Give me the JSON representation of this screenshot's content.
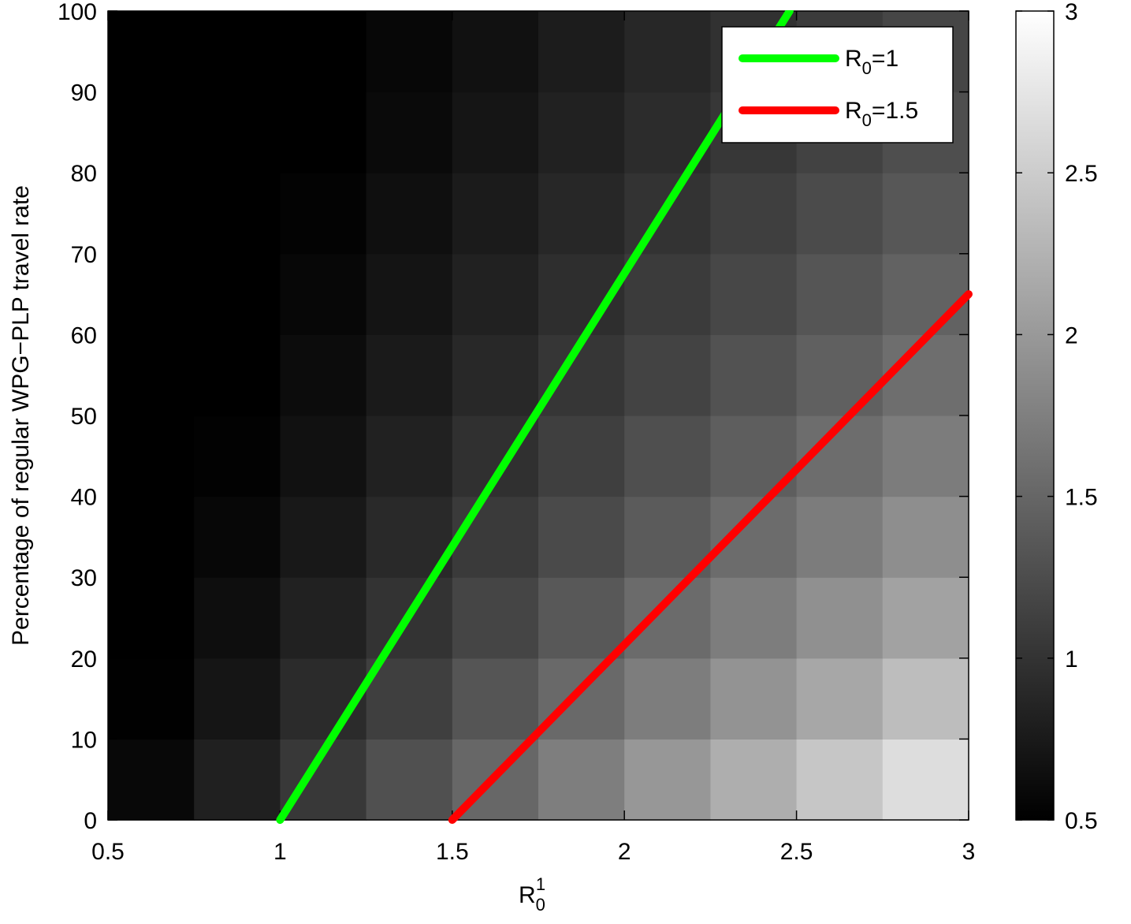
{
  "chart_data": {
    "type": "heatmap",
    "x_label": "R01",
    "y_label": "Percentage of regular WPG−PLP travel rate",
    "xlim": [
      0.5,
      3
    ],
    "ylim": [
      0,
      100
    ],
    "xticks": [
      0.5,
      1,
      1.5,
      2,
      2.5,
      3
    ],
    "yticks": [
      0,
      10,
      20,
      30,
      40,
      50,
      60,
      70,
      80,
      90,
      100
    ],
    "x": [
      0.625,
      0.875,
      1.125,
      1.375,
      1.625,
      1.875,
      2.125,
      2.375,
      2.625,
      2.875
    ],
    "y": [
      5,
      15,
      25,
      35,
      45,
      55,
      65,
      75,
      85,
      95
    ],
    "z": [
      [
        0.58,
        0.81,
        1.05,
        1.28,
        1.51,
        1.74,
        1.98,
        2.21,
        2.44,
        2.67
      ],
      [
        0.51,
        0.71,
        0.92,
        1.12,
        1.33,
        1.53,
        1.73,
        1.94,
        2.14,
        2.35
      ],
      [
        0.45,
        0.64,
        0.82,
        1.0,
        1.18,
        1.36,
        1.55,
        1.73,
        1.91,
        2.09
      ],
      [
        0.41,
        0.57,
        0.74,
        0.9,
        1.07,
        1.23,
        1.39,
        1.56,
        1.72,
        1.89
      ],
      [
        0.37,
        0.52,
        0.67,
        0.82,
        0.97,
        1.12,
        1.27,
        1.42,
        1.57,
        1.72
      ],
      [
        0.34,
        0.48,
        0.62,
        0.75,
        0.89,
        1.03,
        1.16,
        1.3,
        1.44,
        1.58
      ],
      [
        0.32,
        0.44,
        0.57,
        0.7,
        0.82,
        0.95,
        1.08,
        1.2,
        1.33,
        1.46
      ],
      [
        0.29,
        0.41,
        0.53,
        0.65,
        0.76,
        0.88,
        1.0,
        1.12,
        1.24,
        1.35
      ],
      [
        0.27,
        0.38,
        0.49,
        0.6,
        0.71,
        0.82,
        0.93,
        1.04,
        1.15,
        1.26
      ],
      [
        0.26,
        0.36,
        0.46,
        0.57,
        0.67,
        0.77,
        0.88,
        0.98,
        1.08,
        1.19
      ]
    ],
    "colormap": "gray",
    "colorbar": {
      "lim": [
        0.5,
        3
      ],
      "ticks": [
        0.5,
        1,
        1.5,
        2,
        2.5,
        3
      ]
    },
    "series": [
      {
        "name": "R0=1",
        "color": "#00ff00",
        "x": [
          1,
          2.48
        ],
        "values": [
          0,
          100
        ]
      },
      {
        "name": "R0=1.5",
        "color": "#ff0000",
        "x": [
          1.5,
          3
        ],
        "values": [
          0,
          65
        ]
      }
    ],
    "legend": "upper right"
  }
}
